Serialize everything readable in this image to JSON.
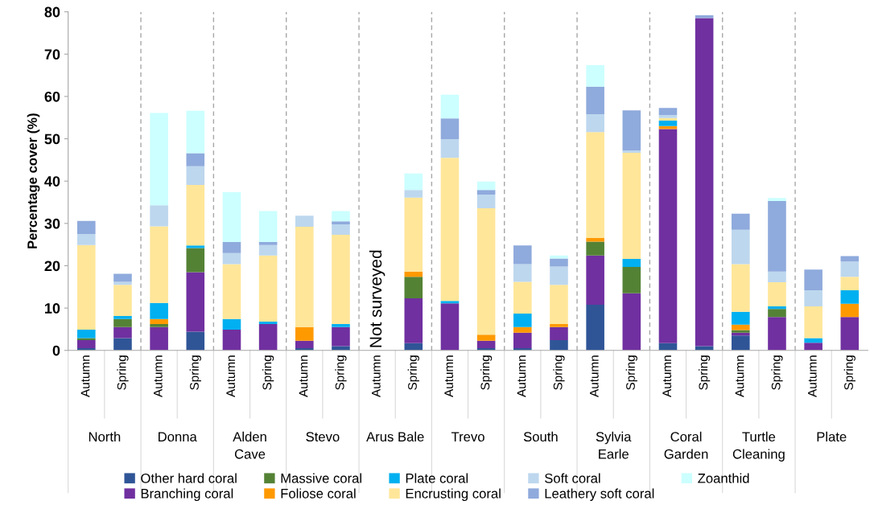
{
  "chart_data": {
    "type": "bar",
    "stacked": true,
    "ylabel": "Percentage cover (%)",
    "categories": [
      "Autumn",
      "Spring",
      "Autumn",
      "Spring",
      "Autumn",
      "Spring",
      "Autumn",
      "Spring",
      "Autumn",
      "Spring",
      "Autumn",
      "Spring",
      "Autumn",
      "Spring",
      "Autumn",
      "Spring",
      "Autumn",
      "Spring",
      "Autumn",
      "Spring",
      "Autumn",
      "Spring"
    ],
    "annotations": [
      "Not surveyed",
      "North",
      "Donna",
      "Alden\nCave",
      "Stevo",
      "Arus Bale",
      "Trevo",
      "South",
      "Sylvia\nEarle",
      "Coral\nGarden",
      "Turtle\nCleaning",
      "Plate"
    ],
    "ylim": [
      0,
      80
    ],
    "yticks": [
      0,
      10,
      20,
      30,
      40,
      50,
      60,
      70,
      80
    ],
    "grid": false,
    "legend": "bottom",
    "series": [
      {
        "name": "Other hard coral",
        "color": "#2f5597",
        "values": [
          0.5,
          2.9,
          0,
          4.4,
          0,
          0,
          0.5,
          1.0,
          null,
          1.7,
          0,
          0.5,
          0.5,
          2.4,
          10.8,
          0,
          1.7,
          1.0,
          3.5,
          0,
          0,
          0
        ]
      },
      {
        "name": "Branching coral",
        "color": "#7030a0",
        "values": [
          1.9,
          2.6,
          5.5,
          14.1,
          4.9,
          6.2,
          1.8,
          4.5,
          null,
          10.6,
          11.1,
          1.8,
          3.7,
          3.1,
          11.6,
          13.5,
          50.6,
          77.5,
          0.7,
          7.9,
          1.8,
          7.9
        ]
      },
      {
        "name": "Massive coral",
        "color": "#548235",
        "values": [
          0.5,
          1.9,
          0.7,
          5.7,
          0,
          0,
          0,
          0,
          null,
          5.1,
          0,
          0,
          0,
          0,
          3.3,
          6.2,
          0,
          0,
          0.6,
          1.9,
          0,
          0
        ]
      },
      {
        "name": "Foliose coral",
        "color": "#ff9900",
        "values": [
          0,
          0,
          1.2,
          0,
          0,
          0,
          3.2,
          0,
          null,
          1.2,
          0,
          1.4,
          1.3,
          0.7,
          0.9,
          0,
          0.7,
          0,
          1.3,
          0,
          0,
          3.1
        ]
      },
      {
        "name": "Plate coral",
        "color": "#00b0f0",
        "values": [
          2.0,
          0.7,
          3.8,
          0.6,
          2.5,
          0.6,
          0,
          0.7,
          null,
          0,
          0.6,
          0,
          3.2,
          0,
          0,
          1.9,
          1.3,
          0,
          3.0,
          0.6,
          1.1,
          3.2
        ]
      },
      {
        "name": "Encrusting coral",
        "color": "#ffe699",
        "values": [
          20.0,
          7.4,
          18.1,
          14.3,
          13.0,
          15.6,
          23.7,
          21.1,
          null,
          17.5,
          33.8,
          29.9,
          7.5,
          9.3,
          25.0,
          25.1,
          0.6,
          0,
          11.3,
          5.7,
          7.5,
          3.2
        ]
      },
      {
        "name": "Soft coral",
        "color": "#bdd7ee",
        "values": [
          2.6,
          0.7,
          5.0,
          4.4,
          2.6,
          2.5,
          2.6,
          2.5,
          null,
          1.8,
          4.4,
          3.2,
          4.2,
          4.3,
          4.2,
          0.5,
          0.7,
          0,
          8.1,
          2.5,
          3.8,
          3.6
        ]
      },
      {
        "name": "Leathery soft coral",
        "color": "#8faadc",
        "values": [
          3.1,
          1.9,
          0,
          3.1,
          2.6,
          0.7,
          0,
          0.7,
          null,
          0,
          4.9,
          1.1,
          4.4,
          1.9,
          6.5,
          9.5,
          1.7,
          0.7,
          3.8,
          16.7,
          4.9,
          1.3
        ]
      },
      {
        "name": "Zoanthid",
        "color": "#ccffff",
        "values": [
          0,
          0,
          21.8,
          10.0,
          11.8,
          7.3,
          0,
          2.4,
          null,
          3.9,
          5.6,
          2.0,
          0,
          0.7,
          5.1,
          0,
          0,
          0,
          0,
          0.7,
          0,
          0
        ]
      }
    ]
  }
}
